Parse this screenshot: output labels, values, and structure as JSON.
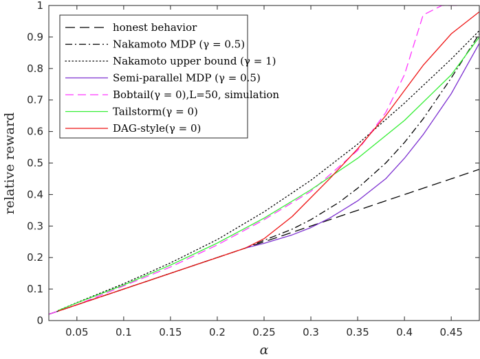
{
  "chart_data": {
    "type": "line",
    "title": "",
    "xlabel": "α",
    "ylabel": "relative reward",
    "xlim": [
      0.02,
      0.48
    ],
    "ylim": [
      0,
      1
    ],
    "xticks": [
      0.05,
      0.1,
      0.15,
      0.2,
      0.25,
      0.3,
      0.35,
      0.4,
      0.45
    ],
    "xtick_labels": [
      "0.05",
      "0.1",
      "0.15",
      "0.2",
      "0.25",
      "0.3",
      "0.35",
      "0.4",
      "0.45"
    ],
    "yticks": [
      0,
      0.1,
      0.2,
      0.3,
      0.4,
      0.5,
      0.6,
      0.7,
      0.8,
      0.9,
      1
    ],
    "ytick_labels": [
      "0",
      "0.1",
      "0.2",
      "0.3",
      "0.4",
      "0.5",
      "0.6",
      "0.7",
      "0.8",
      "0.9",
      "1"
    ],
    "legend_position": "top-left",
    "series": [
      {
        "name": "honest behavior",
        "color": "#000000",
        "dash": "long-dash",
        "x": [
          0.02,
          0.48
        ],
        "y": [
          0.02,
          0.48
        ]
      },
      {
        "name": "Nakamoto MDP (γ = 0.5)",
        "color": "#000000",
        "dash": "dash-dot",
        "x": [
          0.02,
          0.23,
          0.25,
          0.28,
          0.3,
          0.33,
          0.35,
          0.38,
          0.4,
          0.42,
          0.45,
          0.48
        ],
        "y": [
          0.02,
          0.23,
          0.255,
          0.29,
          0.32,
          0.375,
          0.42,
          0.5,
          0.565,
          0.64,
          0.77,
          0.91
        ]
      },
      {
        "name": "Nakamoto upper bound (γ = 1)",
        "color": "#000000",
        "dash": "dotted",
        "x": [
          0.03,
          0.05,
          0.1,
          0.15,
          0.2,
          0.25,
          0.3,
          0.35,
          0.4,
          0.45,
          0.48
        ],
        "y": [
          0.032,
          0.057,
          0.117,
          0.183,
          0.257,
          0.345,
          0.445,
          0.56,
          0.69,
          0.83,
          0.92
        ]
      },
      {
        "name": "Semi-parallel MDP (γ = 0.5)",
        "color": "#7c2fd0",
        "dash": "solid",
        "x": [
          0.23,
          0.25,
          0.28,
          0.3,
          0.32,
          0.35,
          0.38,
          0.4,
          0.42,
          0.45,
          0.48
        ],
        "y": [
          0.23,
          0.245,
          0.272,
          0.295,
          0.325,
          0.38,
          0.45,
          0.515,
          0.59,
          0.72,
          0.88
        ]
      },
      {
        "name": "Bobtail(γ = 0),L=50, simulation",
        "color": "#ff33ff",
        "dash": "dashed",
        "x": [
          0.02,
          0.05,
          0.1,
          0.15,
          0.2,
          0.25,
          0.3,
          0.35,
          0.38,
          0.4,
          0.42,
          0.44,
          0.46
        ],
        "y": [
          0.02,
          0.05,
          0.11,
          0.17,
          0.24,
          0.32,
          0.41,
          0.54,
          0.66,
          0.78,
          0.97,
          1.0,
          1.0
        ]
      },
      {
        "name": "Tailstorm(γ = 0)",
        "color": "#33ee33",
        "dash": "solid",
        "x": [
          0.03,
          0.05,
          0.1,
          0.15,
          0.2,
          0.25,
          0.3,
          0.35,
          0.4,
          0.45,
          0.48
        ],
        "y": [
          0.032,
          0.056,
          0.113,
          0.176,
          0.246,
          0.325,
          0.415,
          0.515,
          0.635,
          0.78,
          0.9
        ]
      },
      {
        "name": "DAG-style(γ = 0)",
        "color": "#ee1111",
        "dash": "solid",
        "x": [
          0.03,
          0.1,
          0.2,
          0.23,
          0.25,
          0.28,
          0.3,
          0.32,
          0.35,
          0.38,
          0.4,
          0.42,
          0.45,
          0.48
        ],
        "y": [
          0.03,
          0.1,
          0.2,
          0.23,
          0.26,
          0.33,
          0.39,
          0.45,
          0.545,
          0.65,
          0.73,
          0.81,
          0.91,
          0.98
        ]
      }
    ]
  }
}
